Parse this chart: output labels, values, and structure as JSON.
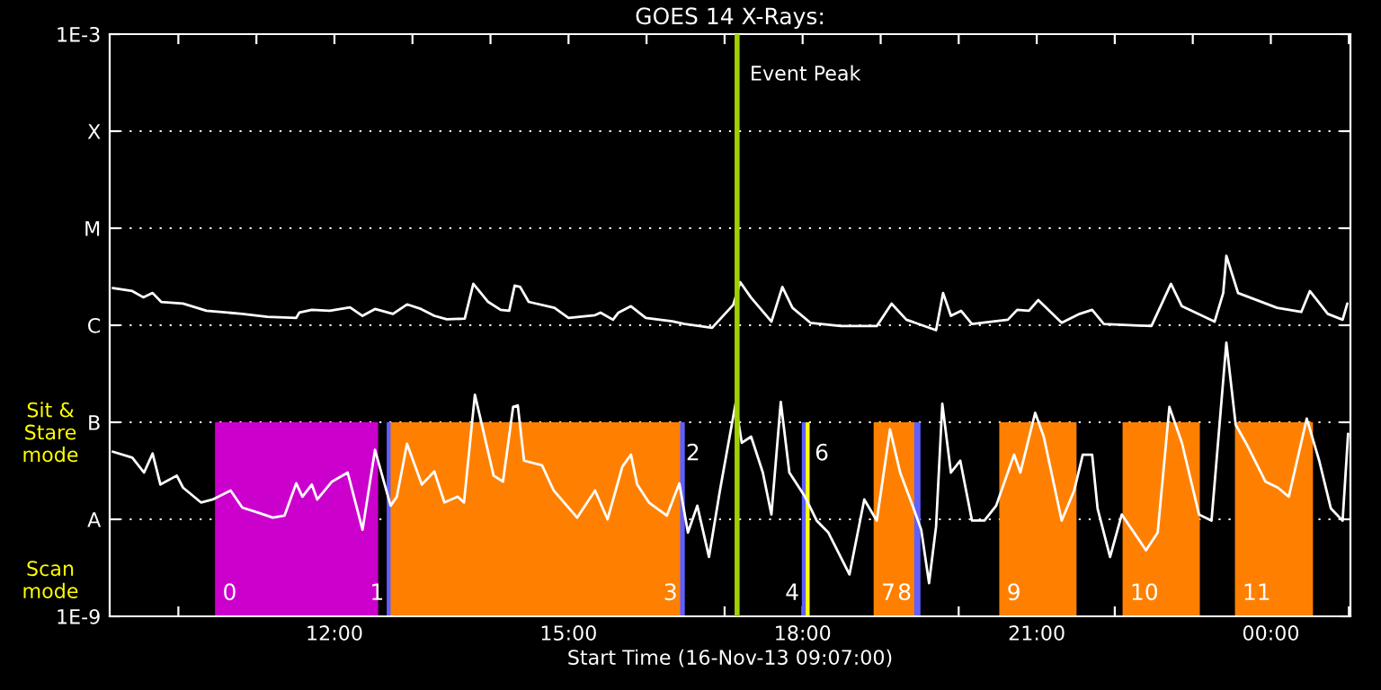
{
  "chart_data": {
    "type": "line",
    "title": "GOES 14 X-Rays:",
    "xlabel": "Start Time (16-Nov-13 09:07:00)",
    "log": "y",
    "grid": "y",
    "xlim": [
      9.12,
      25.02
    ],
    "xticks": [
      {
        "value": 10,
        "label": null
      },
      {
        "value": 11,
        "label": null
      },
      {
        "value": 12,
        "label": "12:00"
      },
      {
        "value": 13,
        "label": null
      },
      {
        "value": 14,
        "label": null
      },
      {
        "value": 15,
        "label": "15:00"
      },
      {
        "value": 16,
        "label": null
      },
      {
        "value": 17,
        "label": null
      },
      {
        "value": 18,
        "label": "18:00"
      },
      {
        "value": 19,
        "label": null
      },
      {
        "value": 20,
        "label": null
      },
      {
        "value": 21,
        "label": "21:00"
      },
      {
        "value": 22,
        "label": null
      },
      {
        "value": 23,
        "label": null
      },
      {
        "value": 24,
        "label": "00:00"
      },
      {
        "value": 25,
        "label": null
      }
    ],
    "ylim": [
      1e-09,
      0.001
    ],
    "yticks": [
      {
        "value": 1e-09,
        "label": "1E-9"
      },
      {
        "value": 1e-08,
        "label": "A"
      },
      {
        "value": 1e-07,
        "label": "B"
      },
      {
        "value": 1e-06,
        "label": "C"
      },
      {
        "value": 1e-05,
        "label": "M"
      },
      {
        "value": 0.0001,
        "label": "X"
      },
      {
        "value": 0.001,
        "label": "1E-3"
      }
    ],
    "series": [
      {
        "color": "#ffffff",
        "x": [
          9.16,
          9.41,
          9.55,
          9.67,
          9.78,
          10.06,
          10.36,
          10.82,
          11.14,
          11.51,
          11.55,
          11.71,
          11.94,
          12.2,
          12.36,
          12.52,
          12.75,
          12.93,
          13.11,
          13.28,
          13.44,
          13.67,
          13.78,
          13.97,
          14.13,
          14.24,
          14.31,
          14.38,
          14.49,
          14.82,
          15.0,
          15.34,
          15.41,
          15.57,
          15.64,
          15.8,
          15.99,
          16.33,
          16.49,
          16.84,
          17.11,
          17.2,
          17.34,
          17.6,
          17.74,
          17.87,
          18.1,
          18.49,
          18.95,
          19.14,
          19.33,
          19.71,
          19.8,
          19.9,
          20.03,
          20.17,
          20.63,
          20.75,
          20.9,
          21.02,
          21.32,
          21.55,
          21.71,
          21.86,
          22.47,
          22.72,
          22.86,
          23.28,
          23.39,
          23.43,
          23.58,
          24.08,
          24.39,
          24.5,
          24.73,
          24.92,
          24.98
        ],
        "values": [
          2.41e-06,
          2.25e-06,
          1.94e-06,
          2.15e-06,
          1.74e-06,
          1.67e-06,
          1.41e-06,
          1.31e-06,
          1.22e-06,
          1.19e-06,
          1.35e-06,
          1.44e-06,
          1.41e-06,
          1.53e-06,
          1.25e-06,
          1.47e-06,
          1.31e-06,
          1.64e-06,
          1.47e-06,
          1.25e-06,
          1.15e-06,
          1.17e-06,
          2.67e-06,
          1.74e-06,
          1.44e-06,
          1.41e-06,
          2.56e-06,
          2.48e-06,
          1.74e-06,
          1.51e-06,
          1.19e-06,
          1.27e-06,
          1.35e-06,
          1.14e-06,
          1.35e-06,
          1.57e-06,
          1.19e-06,
          1.1e-06,
          1.03e-06,
          9.4e-07,
          1.62e-06,
          2.78e-06,
          1.92e-06,
          1.09e-06,
          2.48e-06,
          1.51e-06,
          1.06e-06,
          9.8e-07,
          9.8e-07,
          1.67e-06,
          1.14e-06,
          8.9e-07,
          2.15e-06,
          1.25e-06,
          1.41e-06,
          1.03e-06,
          1.14e-06,
          1.44e-06,
          1.41e-06,
          1.82e-06,
          1.06e-06,
          1.31e-06,
          1.44e-06,
          1.03e-06,
          9.8e-07,
          2.67e-06,
          1.57e-06,
          1.09e-06,
          2.15e-06,
          5.19e-06,
          2.15e-06,
          1.51e-06,
          1.37e-06,
          2.25e-06,
          1.31e-06,
          1.14e-06,
          1.67e-06
        ]
      },
      {
        "color": "#ffffff",
        "x": [
          9.16,
          9.41,
          9.56,
          9.67,
          9.77,
          9.98,
          10.06,
          10.29,
          10.44,
          10.67,
          10.82,
          11.05,
          11.21,
          11.36,
          11.51,
          11.59,
          11.71,
          11.78,
          11.97,
          12.17,
          12.28,
          12.36,
          12.52,
          12.72,
          12.8,
          12.93,
          13.12,
          13.28,
          13.41,
          13.58,
          13.66,
          13.8,
          13.89,
          14.04,
          14.16,
          14.29,
          14.35,
          14.43,
          14.66,
          14.81,
          15.11,
          15.34,
          15.5,
          15.69,
          15.8,
          15.88,
          16.03,
          16.26,
          16.42,
          16.53,
          16.65,
          16.8,
          16.94,
          17.14,
          17.22,
          17.34,
          17.49,
          17.6,
          17.72,
          17.83,
          18.03,
          18.18,
          18.33,
          18.6,
          18.79,
          18.95,
          19.12,
          19.25,
          19.41,
          19.52,
          19.62,
          19.71,
          19.79,
          19.9,
          20.02,
          20.17,
          20.33,
          20.48,
          20.71,
          20.79,
          20.98,
          21.09,
          21.32,
          21.48,
          21.59,
          21.71,
          21.78,
          21.94,
          22.09,
          22.4,
          22.55,
          22.7,
          22.86,
          23.08,
          23.24,
          23.43,
          23.55,
          23.7,
          23.93,
          24.09,
          24.23,
          24.46,
          24.62,
          24.77,
          24.92,
          24.99
        ],
        "values": [
          4.97e-08,
          4.32e-08,
          3.03e-08,
          4.76e-08,
          2.28e-08,
          2.82e-08,
          2.12e-08,
          1.49e-08,
          1.6e-08,
          1.98e-08,
          1.32e-08,
          1.15e-08,
          1.04e-08,
          1.09e-08,
          2.35e-08,
          1.71e-08,
          2.28e-08,
          1.6e-08,
          2.45e-08,
          3.03e-08,
          1.38e-08,
          7.8e-09,
          5.19e-08,
          1.38e-08,
          1.71e-08,
          6e-08,
          2.28e-08,
          3.11e-08,
          1.49e-08,
          1.71e-08,
          1.49e-08,
          1.92e-07,
          9.4e-08,
          2.82e-08,
          2.45e-08,
          1.44e-07,
          1.49e-07,
          4.02e-08,
          3.6e-08,
          1.98e-08,
          1.04e-08,
          1.98e-08,
          1e-08,
          3.49e-08,
          4.64e-08,
          2.28e-08,
          1.49e-08,
          1.09e-08,
          2.35e-08,
          7.3e-09,
          1.38e-08,
          4.1e-09,
          1.98e-08,
          1.55e-07,
          6.15e-08,
          7.11e-08,
          3.03e-08,
          1.12e-08,
          1.62e-07,
          3.03e-08,
          1.71e-08,
          9.7e-09,
          7.3e-09,
          2.7e-09,
          1.6e-08,
          9.7e-09,
          8.43e-08,
          3.03e-08,
          1.38e-08,
          7.8e-09,
          2.2e-09,
          8.4e-09,
          1.55e-07,
          3.03e-08,
          4.02e-08,
          9.7e-09,
          9.7e-09,
          1.38e-08,
          4.64e-08,
          3.03e-08,
          1.25e-07,
          7.11e-08,
          9.7e-09,
          1.98e-08,
          4.64e-08,
          4.64e-08,
          1.29e-08,
          4.1e-09,
          1.12e-08,
          4.8e-09,
          7.3e-09,
          1.44e-07,
          6.15e-08,
          1.12e-08,
          9.7e-09,
          6.6e-07,
          9.4e-08,
          5.74e-08,
          2.45e-08,
          2.12e-08,
          1.71e-08,
          1.09e-07,
          4.02e-08,
          1.29e-08,
          9.7e-09,
          7.6e-08
        ]
      }
    ],
    "ref_lines": [
      {
        "axis": "x",
        "value": 17.16,
        "label": "Event Peak",
        "color": "#a0d000"
      }
    ],
    "bands": [
      {
        "axis": "x",
        "from": 10.47,
        "to": 12.56,
        "label": "0",
        "color": "#cc00cc"
      },
      {
        "axis": "x",
        "from": 12.67,
        "to": 12.74,
        "label": "1",
        "color": "#6060ff"
      },
      {
        "axis": "x",
        "from": 12.72,
        "to": 16.44,
        "label": "2",
        "color": "#ff8000"
      },
      {
        "axis": "x",
        "from": 16.43,
        "to": 16.49,
        "label": "3",
        "color": "#6060ff"
      },
      {
        "axis": "x",
        "from": 17.99,
        "to": 18.06,
        "label": "4",
        "color": "#6060ff"
      },
      {
        "axis": "x",
        "from": 18.04,
        "to": 18.09,
        "label": "6",
        "color": "#ffff00"
      },
      {
        "axis": "x",
        "from": 18.91,
        "to": 19.46,
        "label": "7",
        "color": "#ff8000"
      },
      {
        "axis": "x",
        "from": 19.43,
        "to": 19.51,
        "label": "8",
        "color": "#6060ff"
      },
      {
        "axis": "x",
        "from": 20.52,
        "to": 21.51,
        "label": "9",
        "color": "#ff8000"
      },
      {
        "axis": "x",
        "from": 22.1,
        "to": 23.09,
        "label": "10",
        "color": "#ff8000"
      },
      {
        "axis": "x",
        "from": 23.54,
        "to": 24.54,
        "label": "11",
        "color": "#ff8000"
      }
    ],
    "annotations": [
      "Sit & Stare mode",
      "Scan mode"
    ]
  }
}
